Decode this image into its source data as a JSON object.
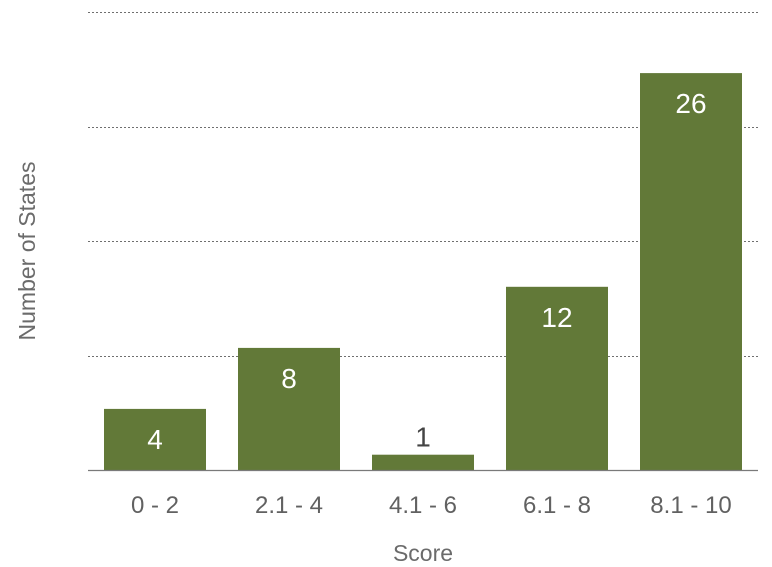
{
  "chart_data": {
    "type": "bar",
    "title": "",
    "xlabel": "Score",
    "ylabel": "Number of States",
    "categories": [
      "0 - 2",
      "2.1 - 4",
      "4.1 - 6",
      "6.1 - 8",
      "8.1 - 10"
    ],
    "values": [
      4,
      8,
      1,
      12,
      26
    ],
    "ylim": [
      0,
      30
    ],
    "y_grid_step": 7.5,
    "grid": true,
    "grid_style": "dotted",
    "data_labels": true,
    "legend": "none",
    "colors": {
      "bar": "#627938",
      "label_on_bar": "#ffffff",
      "label_on_small_bar": "#444444",
      "axis_text": "#616161",
      "grid": "#6f6f6f"
    }
  }
}
